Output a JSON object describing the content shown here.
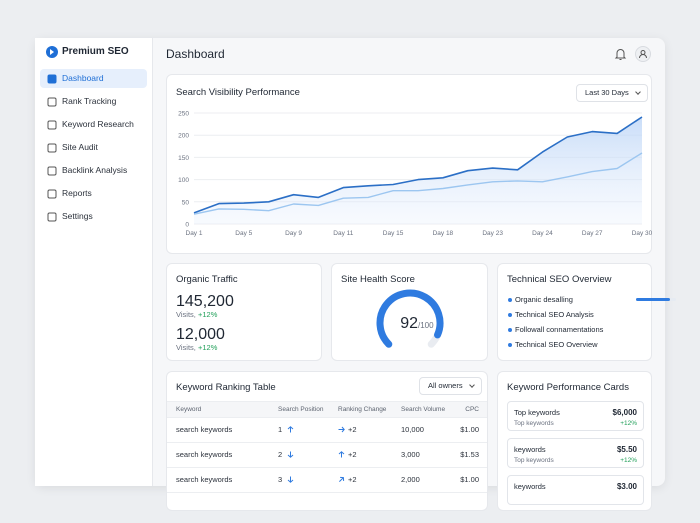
{
  "sidebar": {
    "brand": "Premium SEO",
    "nav": [
      "Dashboard",
      "Rank Tracking",
      "Keyword Research",
      "Site Audit",
      "Backlink Analysis",
      "Reports",
      "Settings"
    ]
  },
  "header": {
    "title": "Dashboard"
  },
  "chart_data": {
    "type": "line",
    "title": "Search Visibility Performance",
    "filter": "Last 30 Days",
    "categories": [
      "Day 1",
      null,
      "Day 5",
      null,
      "Day 9",
      null,
      "Day 11",
      null,
      "Day 15",
      null,
      "Day 18",
      null,
      "Day 23",
      null,
      "Day 24",
      null,
      "Day 27",
      null,
      "Day 30"
    ],
    "series": [
      {
        "color": "#2b6fc6",
        "values": [
          25,
          46,
          47,
          50,
          66,
          60,
          82,
          86,
          89,
          100,
          104,
          120,
          126,
          122,
          162,
          196,
          208,
          204,
          241
        ]
      },
      {
        "color": "#9cc6f0",
        "values": [
          22,
          34,
          33,
          30,
          45,
          42,
          58,
          60,
          75,
          75,
          80,
          88,
          95,
          97,
          95,
          106,
          118,
          125,
          160
        ]
      }
    ],
    "ylim": [
      0,
      250
    ],
    "yticks": [
      0,
      50,
      100,
      150,
      200,
      250
    ],
    "grid": true
  },
  "organic_traffic": {
    "title": "Organic Traffic",
    "metrics": [
      {
        "value": "145,200",
        "label": "Visits,",
        "change": "+12%"
      },
      {
        "value": "12,000",
        "label": "Visits,",
        "change": "+12%"
      }
    ]
  },
  "site_health": {
    "title": "Site Health Score",
    "score": 92,
    "score_max": {
      "value": 100,
      "label": "/100"
    }
  },
  "technical_seo": {
    "title": "Technical SEO Overview",
    "items": [
      "Organic desalling",
      "Technical SEO Analysis",
      "Followall connamentations",
      "Technical SEO Overview"
    ],
    "progress": 85
  },
  "keyword_table": {
    "title": "Keyword Ranking Table",
    "filter": "All owners",
    "columns": [
      "Keyword",
      "Search Position",
      "Ranking Change",
      "Search Volume",
      "CPC"
    ],
    "rows": [
      [
        "search keywords",
        "1",
        "+2",
        "10,000",
        "$1.00"
      ],
      [
        "search keywords",
        "2",
        "+2",
        "3,000",
        "$1.53"
      ],
      [
        "search keywords",
        "3",
        "+2",
        "2,000",
        "$1.00"
      ]
    ]
  },
  "performance_cards": {
    "title": "Keyword Performance Cards",
    "cards": [
      {
        "title": "Top keywords",
        "subtitle": "Top keywords",
        "value": "$6,000",
        "change": "+12%"
      },
      {
        "title": "keywords",
        "subtitle": "Top keywords",
        "value": "$5.50",
        "change": "+12%"
      },
      {
        "title": "keywords",
        "value": "$3.00"
      }
    ]
  }
}
